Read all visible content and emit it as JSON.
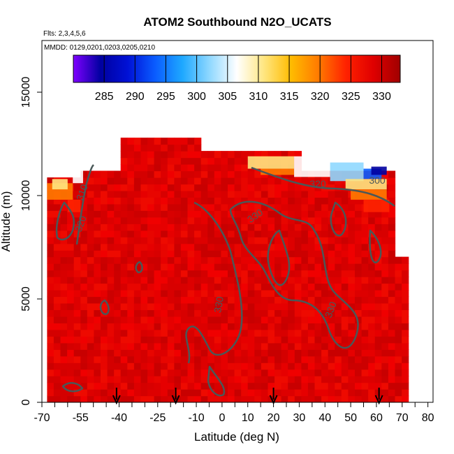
{
  "chart_data": {
    "type": "heatmap",
    "title": "ATOM2 Southbound N2O_UCATS",
    "flights_label": "Flts: 2,3,4,5,6",
    "dates_label": "MMDD: 0129,0201,0203,0205,0210",
    "xlabel": "Latitude (deg N)",
    "ylabel": "Altitude (m)",
    "xlim": [
      -70,
      82
    ],
    "ylim": [
      0,
      17500
    ],
    "x_ticks": [
      -70,
      -55,
      -40,
      -25,
      -10,
      0,
      10,
      20,
      30,
      40,
      50,
      60,
      70,
      80
    ],
    "x_minor_ticks": [
      -65,
      -60,
      -50,
      -45,
      -35,
      -30,
      -20,
      -15,
      -5,
      5,
      15,
      25,
      35,
      45,
      55,
      65,
      75
    ],
    "y_ticks": [
      0,
      5000,
      10000,
      15000
    ],
    "colorbar": {
      "min": 280,
      "max": 333,
      "ticks": [
        285,
        290,
        295,
        300,
        305,
        310,
        315,
        320,
        325,
        330
      ],
      "colors": [
        "#7f00ff",
        "#0000a0",
        "#0011d6",
        "#0a5cff",
        "#1ea8ff",
        "#8fd8ff",
        "#ffffff",
        "#ffe680",
        "#ffbb00",
        "#ff7a00",
        "#ff2200",
        "#e00000",
        "#a00000"
      ]
    },
    "contour_labels": [
      "310",
      "320",
      "330",
      "330",
      "330",
      "320",
      "300"
    ],
    "data_extent": {
      "lat_min": -68,
      "lat_max": 72,
      "alt_max": 12500
    },
    "sounding_markers_lat": [
      -41,
      -18,
      20,
      61
    ]
  }
}
